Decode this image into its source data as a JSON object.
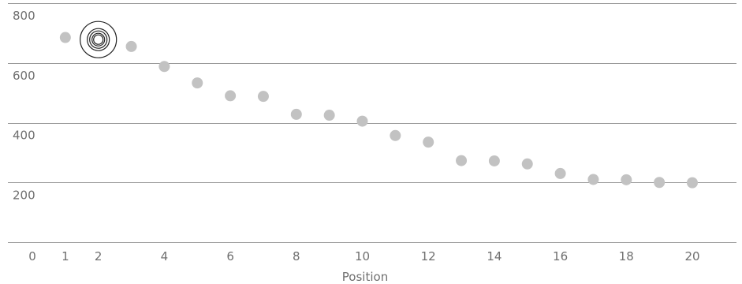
{
  "chart_data": {
    "type": "scatter",
    "title": "",
    "xlabel": "Position",
    "ylabel": "",
    "xlim": [
      0,
      21
    ],
    "ylim": [
      0,
      800
    ],
    "x_ticks": [
      0,
      1,
      2,
      4,
      6,
      8,
      10,
      12,
      14,
      16,
      18,
      20
    ],
    "y_ticks": [
      200,
      400,
      600,
      800
    ],
    "grid": "horizontal",
    "series": [
      {
        "color": "#c2c2c2",
        "points": [
          {
            "x": 1,
            "y": 685
          },
          {
            "x": 2,
            "y": 678
          },
          {
            "x": 3,
            "y": 655
          },
          {
            "x": 4,
            "y": 588
          },
          {
            "x": 5,
            "y": 533
          },
          {
            "x": 6,
            "y": 490
          },
          {
            "x": 7,
            "y": 488
          },
          {
            "x": 8,
            "y": 428
          },
          {
            "x": 9,
            "y": 425
          },
          {
            "x": 10,
            "y": 405
          },
          {
            "x": 11,
            "y": 357
          },
          {
            "x": 12,
            "y": 335
          },
          {
            "x": 13,
            "y": 273
          },
          {
            "x": 14,
            "y": 272
          },
          {
            "x": 15,
            "y": 262
          },
          {
            "x": 16,
            "y": 230
          },
          {
            "x": 17,
            "y": 210
          },
          {
            "x": 18,
            "y": 209
          },
          {
            "x": 19,
            "y": 200
          },
          {
            "x": 20,
            "y": 199
          }
        ]
      }
    ],
    "highlight": {
      "x": 2,
      "y": 678,
      "marker": "concentric-rings"
    }
  }
}
